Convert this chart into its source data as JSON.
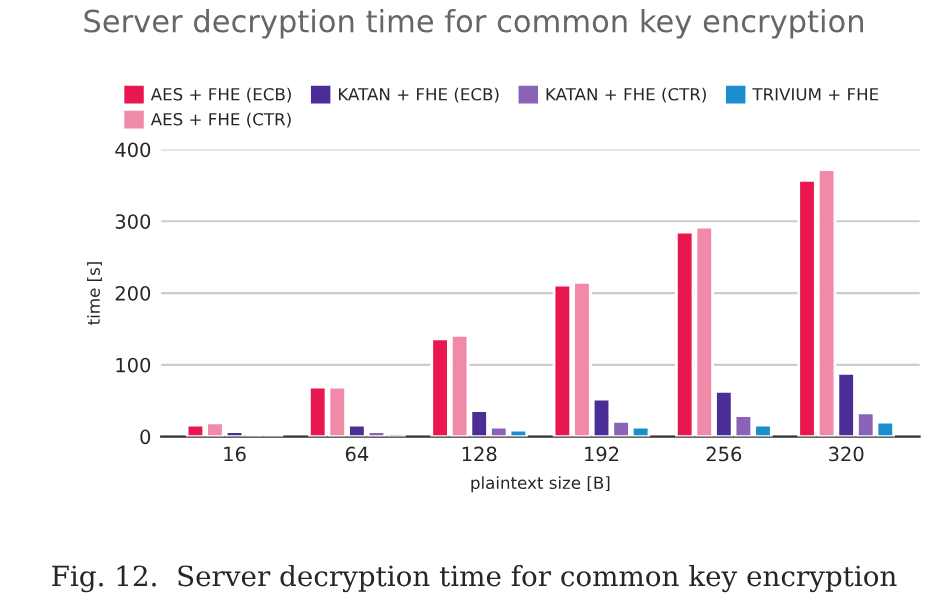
{
  "chart_data": {
    "type": "bar",
    "title": "Server decryption time for common key encryption",
    "xlabel": "plaintext size [B]",
    "ylabel": "time [s]",
    "categories": [
      "16",
      "64",
      "128",
      "192",
      "256",
      "320"
    ],
    "series": [
      {
        "name": "AES + FHE (ECB)",
        "color": "#e8184f",
        "values": [
          16,
          69,
          136,
          211,
          285,
          357
        ]
      },
      {
        "name": "AES + FHE (CTR)",
        "color": "#f08aa8",
        "values": [
          19,
          69,
          141,
          215,
          292,
          372
        ]
      },
      {
        "name": "KATAN + FHE (ECB)",
        "color": "#4a2d96",
        "values": [
          7,
          16,
          36,
          52,
          63,
          88
        ]
      },
      {
        "name": "KATAN + FHE (CTR)",
        "color": "#8a62b8",
        "values": [
          3,
          7,
          13,
          21,
          29,
          33
        ]
      },
      {
        "name": "TRIVIUM + FHE",
        "color": "#1a8fd0",
        "values": [
          1,
          4,
          9,
          13,
          16,
          20
        ]
      }
    ],
    "ylim": [
      0,
      400
    ],
    "yticks": [
      0,
      100,
      200,
      300,
      400
    ],
    "grid": "y",
    "legend": "top",
    "annotations": [
      "Fig. 12.  Server decryption time for common key encryption"
    ]
  }
}
